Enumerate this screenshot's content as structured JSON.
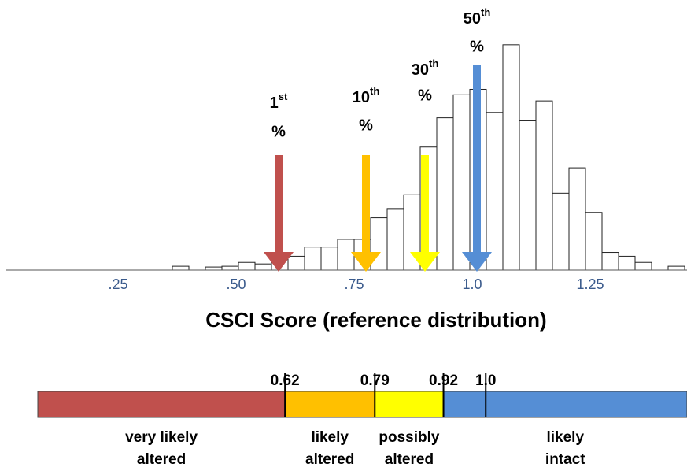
{
  "chart_data": {
    "type": "histogram",
    "xlabel": "CSCI Score (reference distribution)",
    "bins": [
      0.365,
      0.4,
      0.435,
      0.47,
      0.505,
      0.54,
      0.575,
      0.61,
      0.645,
      0.68,
      0.715,
      0.75,
      0.785,
      0.82,
      0.855,
      0.89,
      0.925,
      0.96,
      0.995,
      1.03,
      1.065,
      1.1,
      1.135,
      1.17,
      1.205,
      1.24,
      1.275,
      1.31,
      1.345,
      1.38,
      1.415,
      1.45
    ],
    "counts": [
      5,
      0,
      4,
      5,
      10,
      8,
      14,
      18,
      30,
      30,
      40,
      40,
      68,
      80,
      98,
      160,
      198,
      228,
      235,
      205,
      293,
      195,
      220,
      100,
      133,
      75,
      23,
      18,
      10,
      0,
      5
    ],
    "xlim": [
      0,
      1.455
    ],
    "ylim": [
      0,
      300
    ],
    "xticks": [
      {
        "value": 0.25,
        "label": ".25"
      },
      {
        "value": 0.5,
        "label": ".50"
      },
      {
        "value": 0.75,
        "label": ".75"
      },
      {
        "value": 1.0,
        "label": "1.0"
      },
      {
        "value": 1.25,
        "label": "1.25"
      }
    ],
    "bar_color": "#ffffff",
    "annotations": [
      {
        "x": 0.59,
        "color": "#c0504d",
        "ordinal": "1",
        "suffix": "st",
        "unit": "%"
      },
      {
        "x": 0.775,
        "color": "#ffc000",
        "ordinal": "10",
        "suffix": "th",
        "unit": "%"
      },
      {
        "x": 0.9,
        "color": "#ffff00",
        "ordinal": "30",
        "suffix": "th",
        "unit": "%"
      },
      {
        "x": 1.01,
        "color": "#558ed5",
        "ordinal": "50",
        "suffix": "th",
        "unit": "%"
      }
    ],
    "band": {
      "lim": [
        0.152,
        1.381
      ],
      "thresholds": [
        0.62,
        0.79,
        0.92,
        {
          "value": 1.0,
          "label": "1.0"
        }
      ],
      "segments": [
        {
          "label": [
            "very likely",
            "altered"
          ],
          "color": "#c0504d"
        },
        {
          "label": [
            "likely",
            "altered"
          ],
          "color": "#ffc000"
        },
        {
          "label": [
            "possibly",
            "altered"
          ],
          "color": "#ffff00"
        },
        {
          "label": [
            "likely",
            "intact"
          ],
          "color": "#558ed5"
        }
      ]
    }
  }
}
